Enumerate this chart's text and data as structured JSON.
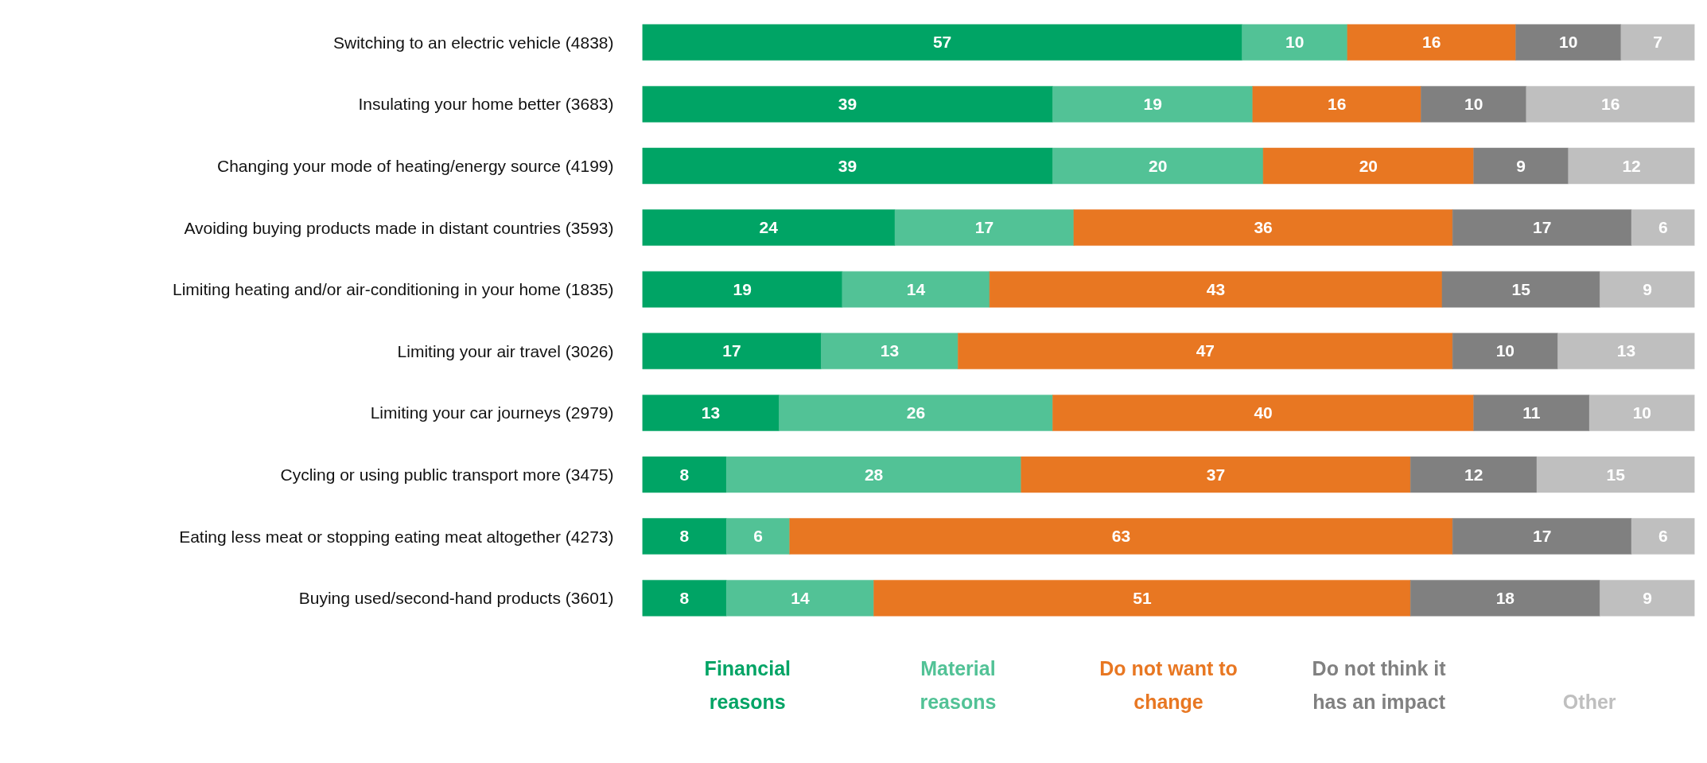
{
  "chart_data": {
    "type": "bar",
    "orientation": "horizontal",
    "stacked": true,
    "data_labels": true,
    "grid": false,
    "tick_labels": "y",
    "categories": [
      "Switching to an electric vehicle (4838)",
      "Insulating your home better (3683)",
      "Changing your mode of heating/energy source (4199)",
      "Avoiding buying products made in distant countries (3593)",
      "Limiting heating and/or air-conditioning in your home (1835)",
      "Limiting your air travel (3026)",
      "Limiting your car journeys (2979)",
      "Cycling or using public transport more (3475)",
      "Eating less meat or stopping eating meat altogether (4273)",
      "Buying used/second-hand products (3601)"
    ],
    "series": [
      {
        "name": "Financial reasons",
        "color": "#00a465",
        "values": [
          57,
          39,
          39,
          24,
          19,
          17,
          13,
          8,
          8,
          8
        ]
      },
      {
        "name": "Material reasons",
        "color": "#52c296",
        "values": [
          10,
          19,
          20,
          17,
          14,
          13,
          26,
          28,
          6,
          14
        ]
      },
      {
        "name": "Do not want to change",
        "color": "#e87722",
        "values": [
          16,
          16,
          20,
          36,
          43,
          47,
          40,
          37,
          63,
          51
        ]
      },
      {
        "name": "Do not think it has an impact",
        "color": "#808080",
        "values": [
          10,
          10,
          9,
          17,
          15,
          10,
          11,
          12,
          17,
          18
        ]
      },
      {
        "name": "Other",
        "color": "#bfbfbf",
        "values": [
          7,
          16,
          12,
          6,
          9,
          13,
          10,
          15,
          6,
          9
        ]
      }
    ]
  }
}
